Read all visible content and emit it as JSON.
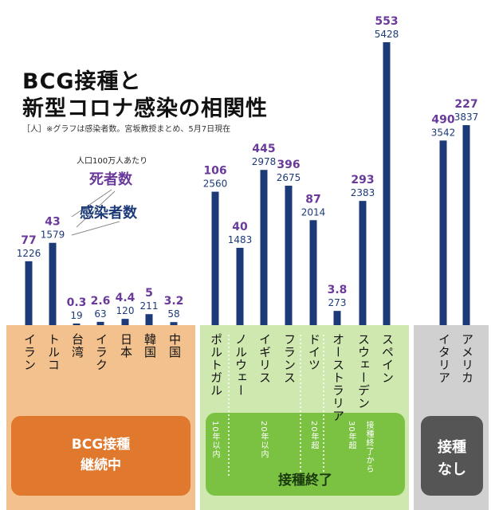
{
  "title_line1": "BCG接種と",
  "title_line2": "新型コロナ感染の相関性",
  "note": "［人］※グラフは感染者数。宮坂教授まとめ、5月7日現在",
  "legend": {
    "header": "人口100万人あたり",
    "deaths_label": "死者数",
    "cases_label": "感染者数"
  },
  "groups": [
    {
      "label_line1": "BCG接種",
      "label_line2": "継続中",
      "color": "#e0782e"
    },
    {
      "label_line1": "接種終了",
      "label_line2": "",
      "color": "#7cc242"
    },
    {
      "label_line1": "接種",
      "label_line2": "なし",
      "color": "#555555"
    }
  ],
  "ended_spans": [
    "10年以内",
    "20年以内",
    "20年超",
    "30年超",
    "接種終了から"
  ],
  "colors": {
    "bar": "#1c3a78",
    "deaths_text": "#6a3a9a",
    "cases_text": "#1c3a78",
    "panel_orange": "#f2c18d",
    "panel_green": "#cfe8b0",
    "panel_grey": "#d0d0d0"
  },
  "chart_data": {
    "type": "bar",
    "categories": [
      "イラン",
      "トルコ",
      "台湾",
      "イラク",
      "日本",
      "韓国",
      "中国",
      "ポルトガル",
      "ノルウェー",
      "イギリス",
      "フランス",
      "ドイツ",
      "オーストラリア",
      "スウェーデン",
      "スペイン",
      "イタリア",
      "アメリカ"
    ],
    "series": [
      {
        "name": "感染者数",
        "values": [
          1226,
          1579,
          19,
          63,
          120,
          211,
          58,
          2560,
          1483,
          2978,
          2675,
          2014,
          273,
          2383,
          5428,
          3542,
          3837
        ]
      },
      {
        "name": "死者数",
        "values_text": [
          "77",
          "43",
          "0.3",
          "2.6",
          "4.4",
          "5",
          "3.2",
          "106",
          "40",
          "445",
          "396",
          "87",
          "3.8",
          "293",
          "553",
          "490",
          "227"
        ]
      }
    ],
    "unit": "人"
  }
}
